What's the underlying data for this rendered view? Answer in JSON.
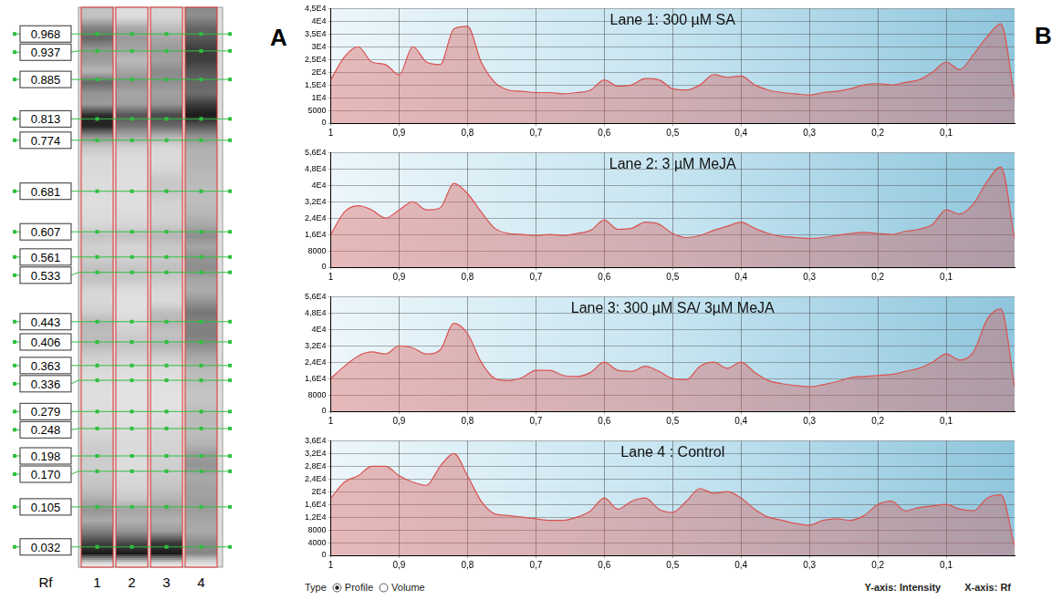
{
  "panel_a": {
    "letter": "A",
    "rf_header": "Rf",
    "lanes": [
      "1",
      "2",
      "3",
      "4"
    ],
    "rf_values": [
      0.968,
      0.937,
      0.885,
      0.813,
      0.774,
      0.681,
      0.607,
      0.561,
      0.533,
      0.443,
      0.406,
      0.363,
      0.336,
      0.279,
      0.248,
      0.198,
      {
        "value": 0.17,
        "label": "0.170"
      },
      0.105,
      0.032
    ]
  },
  "panel_b": {
    "letter": "B"
  },
  "footer": {
    "type_label": "Type",
    "options": [
      "Profile",
      "Volume"
    ],
    "selected": "Profile",
    "axis_labels": [
      "Y-axis: Intensity",
      "X-axis: Rf"
    ]
  },
  "chart_data": [
    {
      "type": "line",
      "title": "Lane 1: 300 µM SA",
      "color": "#d9534f",
      "grid": true,
      "x": [
        1,
        0.98,
        0.96,
        0.94,
        0.92,
        0.9,
        0.88,
        0.86,
        0.84,
        0.82,
        0.8,
        0.78,
        0.76,
        0.74,
        0.72,
        0.7,
        0.68,
        0.66,
        0.64,
        0.62,
        0.6,
        0.58,
        0.56,
        0.54,
        0.52,
        0.5,
        0.48,
        0.46,
        0.44,
        0.42,
        0.4,
        0.38,
        0.36,
        0.34,
        0.32,
        0.3,
        0.28,
        0.26,
        0.24,
        0.22,
        0.2,
        0.18,
        0.16,
        0.14,
        0.12,
        0.1,
        0.08,
        0.06,
        0.04,
        0.02,
        0
      ],
      "values": [
        17000,
        26000,
        30000,
        24000,
        23000,
        19000,
        30000,
        24000,
        23000,
        37000,
        38000,
        24000,
        16000,
        13000,
        12500,
        12000,
        12000,
        11500,
        12000,
        13000,
        17000,
        14500,
        15000,
        17500,
        17000,
        13500,
        13000,
        15000,
        19000,
        18000,
        18500,
        15000,
        13000,
        12000,
        11500,
        11000,
        12000,
        12500,
        13500,
        15000,
        15500,
        15000,
        16000,
        17000,
        20000,
        24000,
        21000,
        27000,
        34000,
        39000,
        10000
      ],
      "xlim": [
        1,
        0
      ],
      "xticks": [
        1,
        {
          "value": 0.9,
          "label": "0,9"
        },
        {
          "value": 0.8,
          "label": "0,8"
        },
        {
          "value": 0.7,
          "label": "0,7"
        },
        {
          "value": 0.6,
          "label": "0,6"
        },
        {
          "value": 0.5,
          "label": "0,5"
        },
        {
          "value": 0.4,
          "label": "0,4"
        },
        {
          "value": 0.3,
          "label": "0,3"
        },
        {
          "value": 0.2,
          "label": "0,2"
        },
        {
          "value": 0.1,
          "label": "0,1"
        }
      ],
      "ylim": [
        0,
        45000
      ],
      "yticks": [
        0,
        5000,
        {
          "value": 10000,
          "label": "1E4"
        },
        {
          "value": 15000,
          "label": "1,5E4"
        },
        {
          "value": 20000,
          "label": "2E4"
        },
        {
          "value": 25000,
          "label": "2,5E4"
        },
        {
          "value": 30000,
          "label": "3E4"
        },
        {
          "value": 35000,
          "label": "3,5E4"
        },
        {
          "value": 40000,
          "label": "4E4"
        },
        {
          "value": 45000,
          "label": "4,5E4"
        }
      ]
    },
    {
      "type": "line",
      "title": "Lane 2: 3 µM MeJA",
      "color": "#d9534f",
      "grid": true,
      "x": [
        1,
        0.98,
        0.96,
        0.94,
        0.92,
        0.9,
        0.88,
        0.86,
        0.84,
        0.82,
        0.8,
        0.78,
        0.76,
        0.74,
        0.72,
        0.7,
        0.68,
        0.66,
        0.64,
        0.62,
        0.6,
        0.58,
        0.56,
        0.54,
        0.52,
        0.5,
        0.48,
        0.46,
        0.44,
        0.42,
        0.4,
        0.38,
        0.36,
        0.34,
        0.32,
        0.3,
        0.28,
        0.26,
        0.24,
        0.22,
        0.2,
        0.18,
        0.16,
        0.14,
        0.12,
        0.1,
        0.08,
        0.06,
        0.04,
        0.02,
        0
      ],
      "values": [
        16000,
        27000,
        30000,
        28000,
        24000,
        28000,
        32000,
        28000,
        29000,
        41000,
        36000,
        27000,
        19000,
        16500,
        16000,
        15500,
        16000,
        15500,
        16500,
        18000,
        23000,
        18500,
        19000,
        22000,
        21000,
        16500,
        14500,
        15500,
        18000,
        20000,
        22000,
        19000,
        16500,
        15000,
        14500,
        14000,
        14500,
        15500,
        16500,
        17000,
        16500,
        16000,
        17500,
        18500,
        21000,
        28000,
        26000,
        31000,
        42000,
        49000,
        14000
      ],
      "xlim": [
        1,
        0
      ],
      "xticks": [
        1,
        {
          "value": 0.9,
          "label": "0,9"
        },
        {
          "value": 0.8,
          "label": "0,8"
        },
        {
          "value": 0.7,
          "label": "0,7"
        },
        {
          "value": 0.6,
          "label": "0,6"
        },
        {
          "value": 0.5,
          "label": "0,5"
        },
        {
          "value": 0.4,
          "label": "0,4"
        },
        {
          "value": 0.3,
          "label": "0,3"
        },
        {
          "value": 0.2,
          "label": "0,2"
        },
        {
          "value": 0.1,
          "label": "0,1"
        }
      ],
      "ylim": [
        0,
        56000
      ],
      "yticks": [
        0,
        8000,
        {
          "value": 16000,
          "label": "1,6E4"
        },
        {
          "value": 24000,
          "label": "2,4E4"
        },
        {
          "value": 32000,
          "label": "3,2E4"
        },
        {
          "value": 40000,
          "label": "4E4"
        },
        {
          "value": 48000,
          "label": "4,8E4"
        },
        {
          "value": 56000,
          "label": "5,6E4"
        }
      ]
    },
    {
      "type": "line",
      "title": "Lane 3: 300 µM SA/ 3µM MeJA",
      "color": "#d9534f",
      "grid": true,
      "x": [
        1,
        0.98,
        0.96,
        0.94,
        0.92,
        0.9,
        0.88,
        0.86,
        0.84,
        0.82,
        0.8,
        0.78,
        0.76,
        0.74,
        0.72,
        0.7,
        0.68,
        0.66,
        0.64,
        0.62,
        0.6,
        0.58,
        0.56,
        0.54,
        0.52,
        0.5,
        0.48,
        0.46,
        0.44,
        0.42,
        0.4,
        0.38,
        0.36,
        0.34,
        0.32,
        0.3,
        0.28,
        0.26,
        0.24,
        0.22,
        0.2,
        0.18,
        0.16,
        0.14,
        0.12,
        0.1,
        0.08,
        0.06,
        0.04,
        0.02,
        0
      ],
      "values": [
        16000,
        22000,
        27000,
        29000,
        28000,
        32000,
        31000,
        28000,
        30000,
        43000,
        38000,
        24000,
        16000,
        15000,
        16500,
        20000,
        20000,
        17500,
        17000,
        19000,
        24000,
        20000,
        19500,
        22000,
        19500,
        16000,
        15500,
        22000,
        24000,
        21000,
        24000,
        19000,
        15000,
        13500,
        12500,
        12000,
        13000,
        14500,
        16500,
        17000,
        17500,
        18000,
        19500,
        21000,
        24000,
        28000,
        25000,
        29000,
        45000,
        50000,
        12000
      ],
      "xlim": [
        1,
        0
      ],
      "xticks": [
        1,
        {
          "value": 0.9,
          "label": "0,9"
        },
        {
          "value": 0.8,
          "label": "0,8"
        },
        {
          "value": 0.7,
          "label": "0,7"
        },
        {
          "value": 0.6,
          "label": "0,6"
        },
        {
          "value": 0.5,
          "label": "0,5"
        },
        {
          "value": 0.4,
          "label": "0,4"
        },
        {
          "value": 0.3,
          "label": "0,3"
        },
        {
          "value": 0.2,
          "label": "0,2"
        },
        {
          "value": 0.1,
          "label": "0,1"
        }
      ],
      "ylim": [
        0,
        56000
      ],
      "yticks": [
        0,
        8000,
        {
          "value": 16000,
          "label": "1,6E4"
        },
        {
          "value": 24000,
          "label": "2,4E4"
        },
        {
          "value": 32000,
          "label": "3,2E4"
        },
        {
          "value": 40000,
          "label": "4E4"
        },
        {
          "value": 48000,
          "label": "4,8E4"
        },
        {
          "value": 56000,
          "label": "5,6E4"
        }
      ]
    },
    {
      "type": "line",
      "title": "Lane 4 : Control",
      "color": "#d9534f",
      "grid": true,
      "x": [
        1,
        0.98,
        0.96,
        0.94,
        0.92,
        0.9,
        0.88,
        0.86,
        0.84,
        0.82,
        0.8,
        0.78,
        0.76,
        0.74,
        0.72,
        0.7,
        0.68,
        0.66,
        0.64,
        0.62,
        0.6,
        0.58,
        0.56,
        0.54,
        0.52,
        0.5,
        0.48,
        0.46,
        0.44,
        0.42,
        0.4,
        0.38,
        0.36,
        0.34,
        0.32,
        0.3,
        0.28,
        0.26,
        0.24,
        0.22,
        0.2,
        0.18,
        0.16,
        0.14,
        0.12,
        0.1,
        0.08,
        0.06,
        0.04,
        0.02,
        0
      ],
      "values": [
        18000,
        23000,
        25000,
        28000,
        28000,
        25000,
        23000,
        22000,
        28000,
        32000,
        25000,
        17000,
        13000,
        12500,
        12000,
        11500,
        11000,
        11000,
        12000,
        14000,
        18000,
        14500,
        17000,
        18000,
        14500,
        13500,
        17000,
        21000,
        19500,
        20000,
        18000,
        14500,
        12000,
        11000,
        10000,
        9500,
        11000,
        11500,
        11000,
        12500,
        16000,
        17000,
        14000,
        15000,
        15500,
        16000,
        14500,
        14000,
        18000,
        19000,
        3000
      ],
      "xlim": [
        1,
        0
      ],
      "xticks": [
        1,
        {
          "value": 0.9,
          "label": "0,9"
        },
        {
          "value": 0.8,
          "label": "0,8"
        },
        {
          "value": 0.7,
          "label": "0,7"
        },
        {
          "value": 0.6,
          "label": "0,6"
        },
        {
          "value": 0.5,
          "label": "0,5"
        },
        {
          "value": 0.4,
          "label": "0,4"
        },
        {
          "value": 0.3,
          "label": "0,3"
        },
        {
          "value": 0.2,
          "label": "0,2"
        },
        {
          "value": 0.1,
          "label": "0,1"
        }
      ],
      "ylim": [
        0,
        36000
      ],
      "yticks": [
        0,
        4000,
        8000,
        {
          "value": 12000,
          "label": "1,2E4"
        },
        {
          "value": 16000,
          "label": "1,6E4"
        },
        {
          "value": 20000,
          "label": "2E4"
        },
        {
          "value": 24000,
          "label": "2,4E4"
        },
        {
          "value": 28000,
          "label": "2,8E4"
        },
        {
          "value": 32000,
          "label": "3,2E4"
        },
        {
          "value": 36000,
          "label": "3,6E4"
        }
      ]
    }
  ]
}
